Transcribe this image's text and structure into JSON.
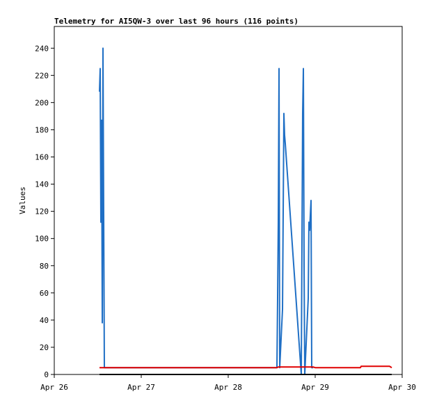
{
  "chart_data": {
    "type": "line",
    "title": "Telemetry for AI5QW-3 over last 96 hours (116 points)",
    "y_label": "Values",
    "xlim": [
      0,
      96
    ],
    "xticks": [
      {
        "value": 0,
        "label": "Apr 26"
      },
      {
        "value": 24,
        "label": "Apr 27"
      },
      {
        "value": 48,
        "label": "Apr 28"
      },
      {
        "value": 72,
        "label": "Apr 29"
      },
      {
        "value": 96,
        "label": "Apr 30"
      }
    ],
    "ylim": [
      0,
      256
    ],
    "yticks": [
      0,
      20,
      40,
      60,
      80,
      100,
      120,
      140,
      160,
      180,
      200,
      220,
      240
    ],
    "grid": false,
    "series": [
      {
        "color": "#1f6fc5",
        "x": [
          12.48,
          12.67,
          12.86,
          13.06,
          13.25,
          13.44,
          13.63,
          13.82,
          61.44,
          61.63,
          61.82,
          62.02,
          62.21,
          62.98,
          63.36,
          63.55,
          63.74,
          68.16,
          68.54,
          68.74,
          68.93,
          69.12,
          70.08,
          70.27,
          70.46,
          70.85,
          71.04,
          71.42
        ],
        "values": [
          208,
          225,
          112,
          187,
          38,
          240,
          120,
          5,
          5,
          56,
          112,
          225,
          5,
          48,
          192,
          176,
          170,
          0,
          192,
          225,
          80,
          0,
          56,
          112,
          106,
          128,
          5,
          5
        ]
      },
      {
        "color": "#e00000",
        "x": [
          12.48,
          61.44,
          61.82,
          71.42,
          72.0,
          84.48,
          84.67,
          92.54,
          93.12
        ],
        "values": [
          5,
          5,
          5.5,
          5.5,
          5,
          5,
          6,
          6,
          5
        ]
      },
      {
        "color": "#000000",
        "x": [
          12.48,
          93.12
        ],
        "values": [
          0,
          0
        ]
      }
    ]
  }
}
